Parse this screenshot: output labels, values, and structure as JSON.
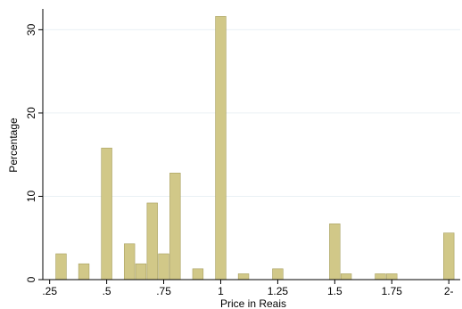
{
  "chart_data": {
    "type": "bar",
    "xlabel": "Price in Reais",
    "ylabel": "Percentage",
    "xlim": [
      0.22,
      2.05
    ],
    "ylim": [
      0,
      32.5
    ],
    "bin_width": 0.05,
    "x_ticks": [
      0.25,
      0.5,
      0.75,
      1,
      1.25,
      1.5,
      1.75,
      2
    ],
    "x_tick_labels": [
      ".25",
      ".5",
      ".75",
      "1",
      "1.25",
      "1.5",
      "1.75",
      "2-"
    ],
    "y_ticks": [
      0,
      10,
      20,
      30
    ],
    "y_tick_labels": [
      "0",
      "10",
      "20",
      "30"
    ],
    "grid": true,
    "bar_color": "#d1c888",
    "bar_edge_color": "#a8a060",
    "bars": [
      {
        "x": 0.3,
        "value": 3.1
      },
      {
        "x": 0.4,
        "value": 1.9
      },
      {
        "x": 0.5,
        "value": 15.8
      },
      {
        "x": 0.6,
        "value": 4.3
      },
      {
        "x": 0.65,
        "value": 1.9
      },
      {
        "x": 0.7,
        "value": 9.2
      },
      {
        "x": 0.75,
        "value": 3.1
      },
      {
        "x": 0.8,
        "value": 12.8
      },
      {
        "x": 0.9,
        "value": 1.3
      },
      {
        "x": 1.0,
        "value": 31.6
      },
      {
        "x": 1.1,
        "value": 0.7
      },
      {
        "x": 1.25,
        "value": 1.3
      },
      {
        "x": 1.5,
        "value": 6.7
      },
      {
        "x": 1.55,
        "value": 0.7
      },
      {
        "x": 1.7,
        "value": 0.7
      },
      {
        "x": 1.75,
        "value": 0.7
      },
      {
        "x": 2.0,
        "value": 5.6
      }
    ]
  }
}
